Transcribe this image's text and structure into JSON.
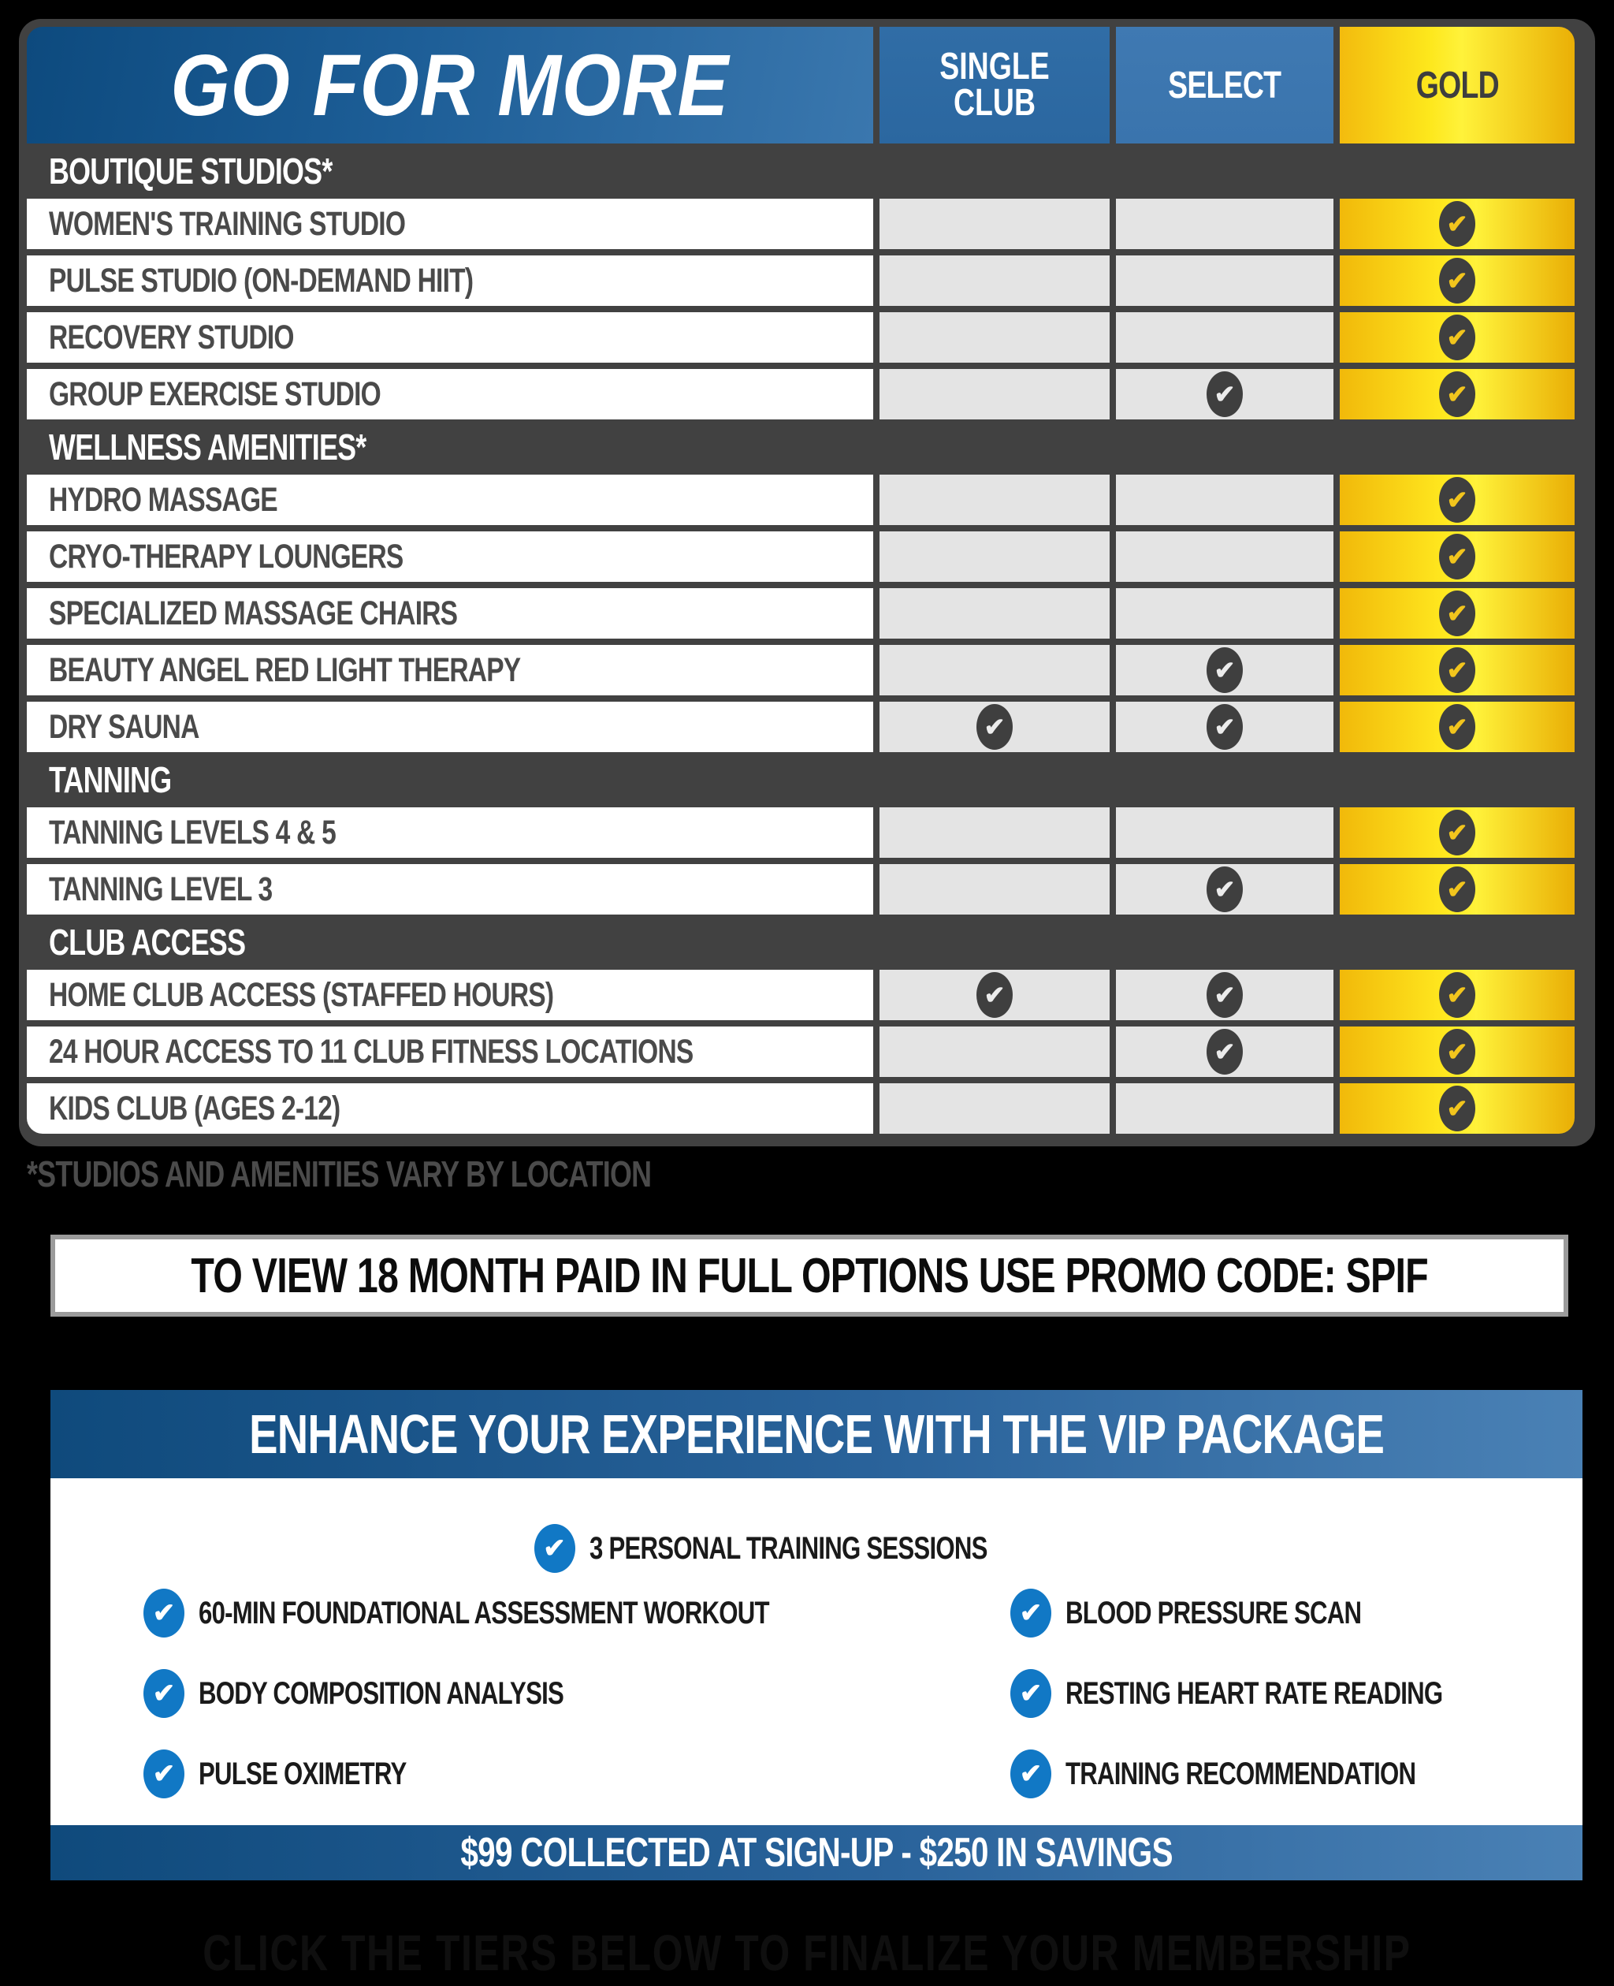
{
  "table": {
    "title": "GO FOR MORE",
    "tiers": [
      {
        "label": "SINGLE CLUB"
      },
      {
        "label": "SELECT"
      },
      {
        "label": "GOLD"
      }
    ],
    "sections": [
      {
        "header": "BOUTIQUE STUDIOS*",
        "rows": [
          {
            "label": "WOMEN'S TRAINING STUDIO",
            "checks": [
              false,
              false,
              true
            ]
          },
          {
            "label": "PULSE STUDIO (ON-DEMAND HIIT)",
            "checks": [
              false,
              false,
              true
            ]
          },
          {
            "label": "RECOVERY STUDIO",
            "checks": [
              false,
              false,
              true
            ]
          },
          {
            "label": "GROUP EXERCISE STUDIO",
            "checks": [
              false,
              true,
              true
            ]
          }
        ]
      },
      {
        "header": "WELLNESS AMENITIES*",
        "rows": [
          {
            "label": "HYDRO MASSAGE",
            "checks": [
              false,
              false,
              true
            ]
          },
          {
            "label": "CRYO-THERAPY LOUNGERS",
            "checks": [
              false,
              false,
              true
            ]
          },
          {
            "label": "SPECIALIZED MASSAGE CHAIRS",
            "checks": [
              false,
              false,
              true
            ]
          },
          {
            "label": "BEAUTY ANGEL RED LIGHT THERAPY",
            "checks": [
              false,
              true,
              true
            ]
          },
          {
            "label": "DRY SAUNA",
            "checks": [
              true,
              true,
              true
            ]
          }
        ]
      },
      {
        "header": "TANNING",
        "rows": [
          {
            "label": "TANNING LEVELS 4 & 5",
            "checks": [
              false,
              false,
              true
            ]
          },
          {
            "label": "TANNING LEVEL 3",
            "checks": [
              false,
              true,
              true
            ]
          }
        ]
      },
      {
        "header": "CLUB ACCESS",
        "rows": [
          {
            "label": "HOME CLUB ACCESS (STAFFED HOURS)",
            "checks": [
              true,
              true,
              true
            ]
          },
          {
            "label": "24 HOUR ACCESS TO 11 CLUB FITNESS LOCATIONS",
            "checks": [
              false,
              true,
              true
            ]
          },
          {
            "label": "KIDS CLUB (AGES 2-12)",
            "checks": [
              false,
              false,
              true
            ]
          }
        ]
      }
    ],
    "footnote": "*STUDIOS AND AMENITIES VARY BY LOCATION",
    "check_icon": "✔"
  },
  "promo": {
    "text": "TO VIEW 18 MONTH PAID IN FULL OPTIONS USE PROMO CODE: SPIF"
  },
  "vip": {
    "title": "ENHANCE YOUR EXPERIENCE WITH THE VIP PACKAGE",
    "featured_item": "3 PERSONAL TRAINING SESSIONS",
    "left_items": [
      "60-MIN FOUNDATIONAL ASSESSMENT WORKOUT",
      "BODY COMPOSITION ANALYSIS",
      "PULSE OXIMETRY"
    ],
    "right_items": [
      "BLOOD PRESSURE SCAN",
      "RESTING HEART RATE READING",
      "TRAINING RECOMMENDATION"
    ],
    "banner": "$99 COLLECTED AT SIGN-UP - $250 IN SAVINGS"
  },
  "footer": {
    "text": "CLICK THE TIERS BELOW TO FINALIZE YOUR MEMBERSHIP"
  },
  "colors": {
    "background": "#000000",
    "frame_dark": "#414141",
    "header_blue": "#1d5e97",
    "select_blue": "#3a74ad",
    "gold": "#ffd400",
    "cell_gray": "#e4e4e4",
    "vip_check_blue": "#1178c5"
  }
}
